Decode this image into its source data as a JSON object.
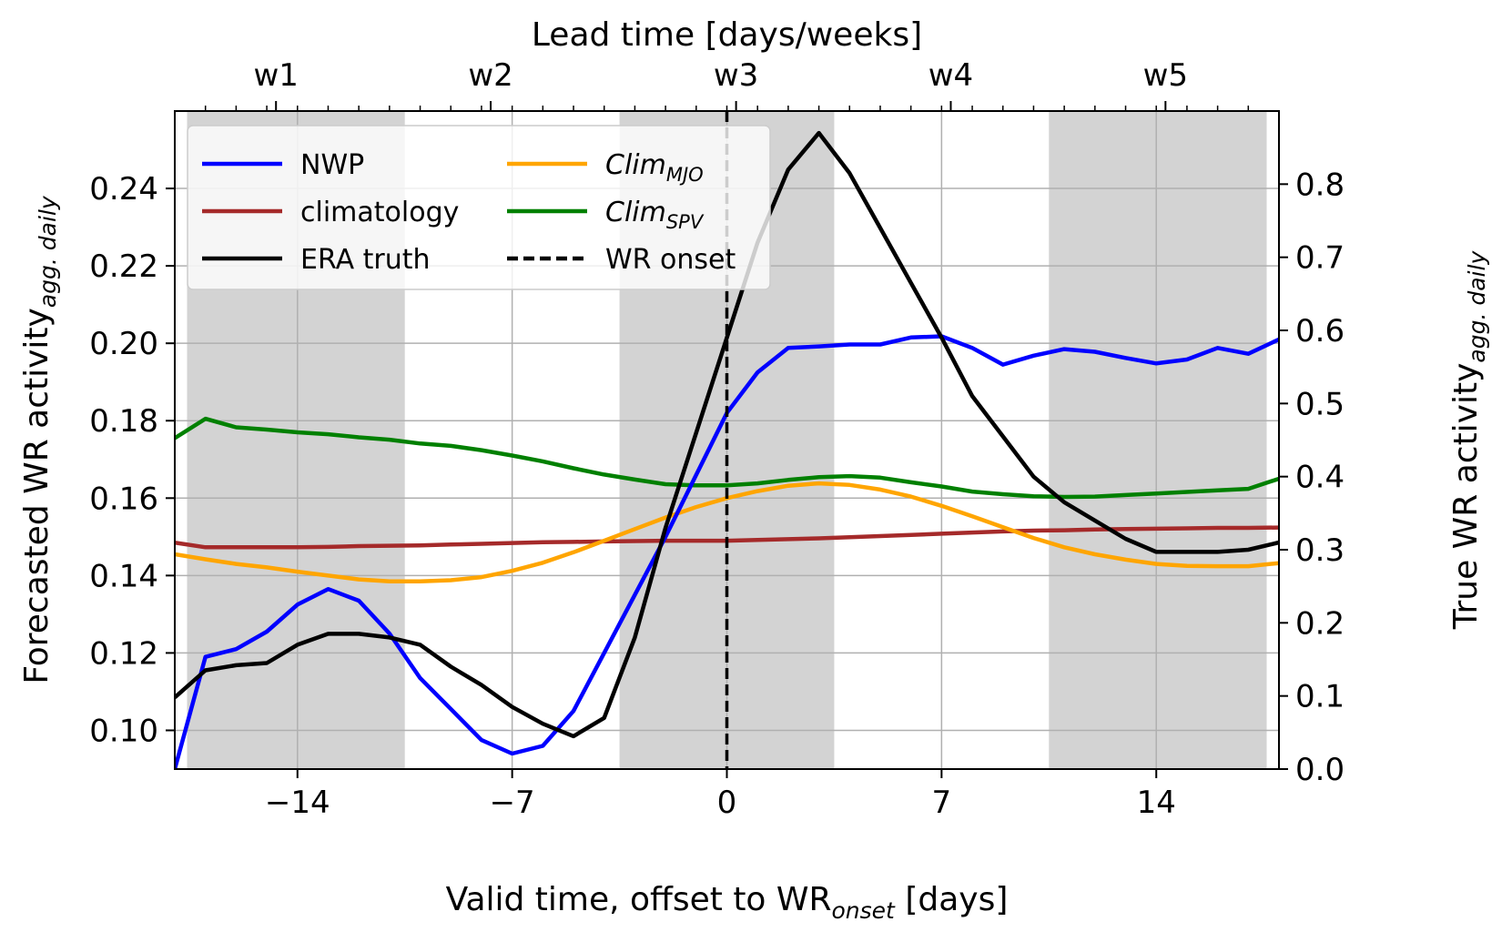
{
  "chart_data": {
    "type": "line",
    "top_axis": {
      "label": "Lead time [days/weeks]",
      "ticks": [
        {
          "x": -14.7,
          "label": "w1"
        },
        {
          "x": -7.7,
          "label": "w2"
        },
        {
          "x": 0.3,
          "label": "w3"
        },
        {
          "x": 7.3,
          "label": "w4"
        },
        {
          "x": 14.3,
          "label": "w5"
        }
      ]
    },
    "xlabel": {
      "prefix": "Valid time, offset to WR",
      "subscript": "onset",
      "suffix": " [days]"
    },
    "ylabel_left": {
      "text": "Forecasted WR activity",
      "subscript": "agg. daily"
    },
    "ylabel_right": {
      "text": "True WR activity",
      "subscript": "agg. daily"
    },
    "xlim": [
      -18,
      18
    ],
    "ylim_left": [
      0.09,
      0.26
    ],
    "ylim_right": [
      0.0,
      0.9
    ],
    "xticks": [
      -14,
      -7,
      0,
      7,
      14
    ],
    "xtick_labels": [
      "−14",
      "−7",
      "0",
      "7",
      "14"
    ],
    "yticks_left": [
      0.1,
      0.12,
      0.14,
      0.16,
      0.18,
      0.2,
      0.22,
      0.24
    ],
    "ytick_labels_left": [
      "0.10",
      "0.12",
      "0.14",
      "0.16",
      "0.18",
      "0.20",
      "0.22",
      "0.24"
    ],
    "yticks_right": [
      0.0,
      0.1,
      0.2,
      0.3,
      0.4,
      0.5,
      0.6,
      0.7,
      0.8
    ],
    "ytick_labels_right": [
      "0.0",
      "0.1",
      "0.2",
      "0.3",
      "0.4",
      "0.5",
      "0.6",
      "0.7",
      "0.8"
    ],
    "grid": true,
    "shaded_bands": [
      [
        -17.6,
        -10.5
      ],
      [
        -3.5,
        3.5
      ],
      [
        10.5,
        17.6
      ]
    ],
    "onset_line_x": 0,
    "x": [
      -18,
      -17,
      -16,
      -15,
      -14,
      -13,
      -12,
      -11,
      -10,
      -9,
      -8,
      -7,
      -6,
      -5,
      -4,
      -3,
      -2,
      -1,
      0,
      1,
      2,
      3,
      4,
      5,
      6,
      7,
      8,
      9,
      10,
      11,
      12,
      13,
      14,
      15,
      16,
      17,
      18
    ],
    "series": [
      {
        "name": "NWP",
        "color": "#0000ff",
        "axis": "left",
        "values": [
          0.09,
          0.119,
          0.121,
          0.1255,
          0.1325,
          0.1365,
          0.1335,
          0.125,
          0.1135,
          0.1055,
          0.0975,
          0.094,
          0.096,
          0.105,
          0.12,
          0.135,
          0.15,
          0.166,
          0.182,
          0.1925,
          0.1988,
          0.1992,
          0.1997,
          0.1997,
          0.2015,
          0.2018,
          0.1988,
          0.1945,
          0.1968,
          0.1985,
          0.1978,
          0.1962,
          0.1948,
          0.1958,
          0.1988,
          0.1973,
          0.201
        ]
      },
      {
        "name": "climatology",
        "color": "#a52a2a",
        "axis": "left",
        "values": [
          0.1485,
          0.1473,
          0.1473,
          0.1473,
          0.1473,
          0.1474,
          0.1476,
          0.1477,
          0.1478,
          0.148,
          0.1482,
          0.1484,
          0.1486,
          0.1487,
          0.1488,
          0.1489,
          0.149,
          0.149,
          0.149,
          0.1492,
          0.1494,
          0.1496,
          0.1499,
          0.1502,
          0.1505,
          0.1508,
          0.1511,
          0.1514,
          0.1516,
          0.1517,
          0.1519,
          0.152,
          0.1521,
          0.1522,
          0.1523,
          0.1523,
          0.1524
        ]
      },
      {
        "name": "ERA truth",
        "color": "#000000",
        "axis": "right",
        "values": [
          0.098,
          0.135,
          0.142,
          0.145,
          0.17,
          0.185,
          0.185,
          0.18,
          0.17,
          0.14,
          0.115,
          0.085,
          0.062,
          0.045,
          0.07,
          0.18,
          0.33,
          0.46,
          0.59,
          0.72,
          0.82,
          0.87,
          0.815,
          0.74,
          0.665,
          0.59,
          0.51,
          0.455,
          0.4,
          0.365,
          0.34,
          0.315,
          0.297,
          0.297,
          0.297,
          0.3,
          0.31
        ]
      },
      {
        "name": "Clim",
        "sub": "MJO",
        "color": "#ffa500",
        "axis": "left",
        "values": [
          0.1455,
          0.1442,
          0.143,
          0.1421,
          0.141,
          0.14,
          0.139,
          0.1385,
          0.1385,
          0.1388,
          0.1396,
          0.1412,
          0.1433,
          0.146,
          0.149,
          0.152,
          0.155,
          0.1577,
          0.16,
          0.1618,
          0.1632,
          0.1638,
          0.1634,
          0.1622,
          0.1604,
          0.158,
          0.1553,
          0.1525,
          0.1497,
          0.1473,
          0.1455,
          0.1441,
          0.143,
          0.1425,
          0.1424,
          0.1424,
          0.1432
        ]
      },
      {
        "name": "Clim",
        "sub": "SPV",
        "color": "#008000",
        "axis": "left",
        "values": [
          0.1755,
          0.1805,
          0.1783,
          0.1777,
          0.177,
          0.1765,
          0.1757,
          0.1751,
          0.1741,
          0.1735,
          0.1724,
          0.171,
          0.1695,
          0.1677,
          0.1661,
          0.1648,
          0.1636,
          0.1633,
          0.1633,
          0.1638,
          0.1647,
          0.1654,
          0.1657,
          0.1653,
          0.1641,
          0.163,
          0.1617,
          0.161,
          0.1605,
          0.1603,
          0.1604,
          0.1608,
          0.1612,
          0.1616,
          0.162,
          0.1624,
          0.165
        ]
      }
    ],
    "legend": {
      "position": "top-left",
      "entries": [
        {
          "label": "NWP",
          "sub": "",
          "color": "#0000ff",
          "style": "solid",
          "italic": false
        },
        {
          "label": "climatology",
          "sub": "",
          "color": "#a52a2a",
          "style": "solid",
          "italic": false
        },
        {
          "label": "ERA truth",
          "sub": "",
          "color": "#000000",
          "style": "solid",
          "italic": false
        },
        {
          "label": "Clim",
          "sub": "MJO",
          "color": "#ffa500",
          "style": "solid",
          "italic": true
        },
        {
          "label": "Clim",
          "sub": "SPV",
          "color": "#008000",
          "style": "solid",
          "italic": true
        },
        {
          "label": "WR onset",
          "sub": "",
          "color": "#000000",
          "style": "dashed",
          "italic": false
        }
      ]
    }
  }
}
